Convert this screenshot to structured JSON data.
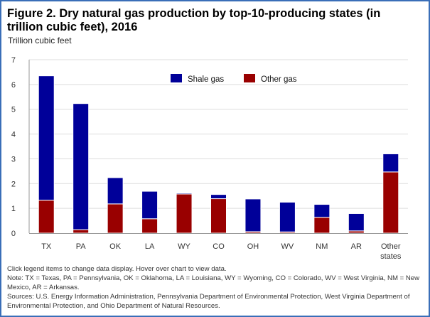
{
  "chart_data": {
    "type": "bar",
    "stacked": true,
    "title": "Figure 2. Dry natural gas production by top-10-producing states (in trillion cubic feet), 2016",
    "ylabel": "Trillion cubic feet",
    "xlabel": "",
    "ylim": [
      0,
      7
    ],
    "yticks": [
      "0",
      "1",
      "2",
      "3",
      "4",
      "5",
      "6",
      "7"
    ],
    "categories": [
      "TX",
      "PA",
      "OK",
      "LA",
      "WY",
      "CO",
      "OH",
      "WV",
      "NM",
      "AR",
      "Other states"
    ],
    "series": [
      {
        "name": "Other gas",
        "color": "#990000",
        "values": [
          1.33,
          0.14,
          1.18,
          0.58,
          1.58,
          1.39,
          0.06,
          0.05,
          0.64,
          0.09,
          2.47
        ]
      },
      {
        "name": "Shale gas",
        "color": "#000099",
        "values": [
          5.02,
          5.09,
          1.06,
          1.11,
          0.04,
          0.17,
          1.32,
          1.2,
          0.52,
          0.7,
          0.73
        ]
      }
    ],
    "legend": [
      {
        "name": "Shale gas",
        "color": "#000099"
      },
      {
        "name": "Other gas",
        "color": "#990000"
      }
    ],
    "legend_placement": "top-right"
  },
  "notes": {
    "line1": "Click legend items to change data display. Hover over chart to view data.",
    "line2": "Note: TX = Texas, PA = Pennsylvania, OK = Oklahoma, LA = Louisiana, WY = Wyoming, CO = Colorado, WV = West Virginia, NM = New Mexico, AR = Arkansas.",
    "line3": "Sources: U.S. Energy Information Administration, Pennsylvania Department of Environmental Protection, West Virginia Department of Environmental Protection, and Ohio Department of Natural Resources."
  },
  "colors": {
    "frame_border": "#3a6eb8",
    "shale": "#000099",
    "other": "#990000"
  }
}
